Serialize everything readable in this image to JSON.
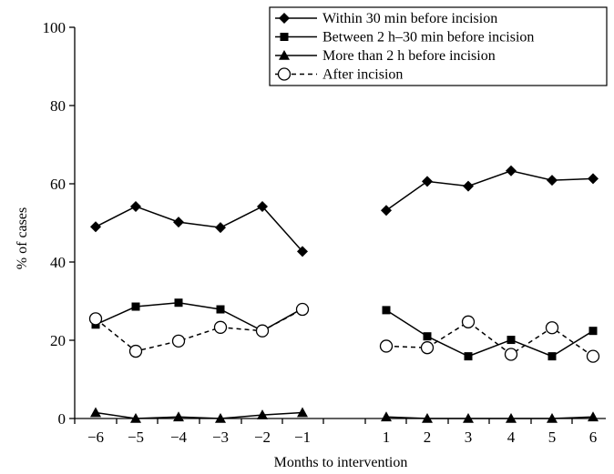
{
  "chart_data": {
    "type": "line",
    "title": "",
    "xlabel": "Months to intervention",
    "ylabel": "% of cases",
    "ylim": [
      0,
      100
    ],
    "yticks": [
      0,
      20,
      40,
      60,
      80,
      100
    ],
    "x": [
      -6,
      -5,
      -4,
      -3,
      -2,
      -1,
      1,
      2,
      3,
      4,
      5,
      6
    ],
    "segments": [
      [
        -6,
        -5,
        -4,
        -3,
        -2,
        -1
      ],
      [
        1,
        2,
        3,
        4,
        5,
        6
      ]
    ],
    "grid": false,
    "legend_position": "top-right",
    "series": [
      {
        "name": "Within 30 min before incision",
        "marker": "diamond-filled",
        "line": "solid",
        "values": [
          49,
          54.2,
          50.2,
          48.8,
          54.2,
          42.7,
          53.2,
          60.6,
          59.4,
          63.3,
          60.9,
          61.3
        ]
      },
      {
        "name": "Between 2 h–30 min before incision",
        "marker": "square-filled",
        "line": "solid",
        "values": [
          24,
          28.6,
          29.6,
          27.9,
          22.4,
          28.1,
          27.7,
          21,
          15.9,
          20.1,
          15.9,
          22.4
        ]
      },
      {
        "name": "More than 2 h before incision",
        "marker": "triangle-filled",
        "line": "solid",
        "values": [
          1.5,
          0,
          0.4,
          0,
          0.9,
          1.5,
          0.4,
          0,
          0,
          0,
          0,
          0.4
        ]
      },
      {
        "name": "After incision",
        "marker": "circle-open",
        "line": "dashed",
        "values": [
          25.5,
          17.2,
          19.8,
          23.3,
          22.4,
          27.9,
          18.5,
          18.1,
          24.7,
          16.4,
          23.2,
          15.9
        ]
      }
    ]
  }
}
